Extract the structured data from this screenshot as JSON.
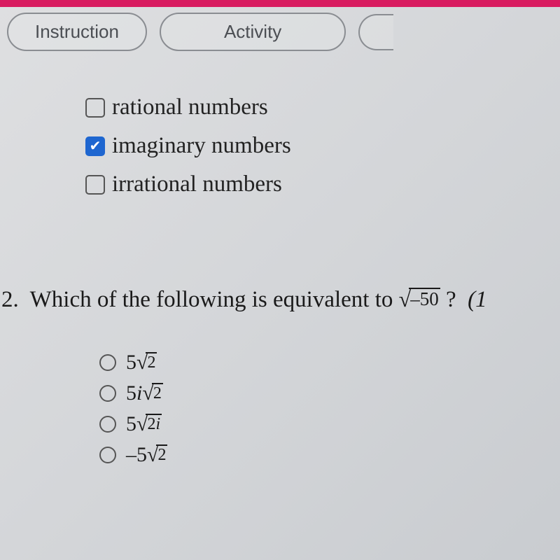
{
  "topbar_color": "#d81b60",
  "tabs": {
    "instruction": "Instruction",
    "activity": "Activity"
  },
  "checkboxes": [
    {
      "label": "rational numbers",
      "checked": false
    },
    {
      "label": "imaginary numbers",
      "checked": true
    },
    {
      "label": "irrational numbers",
      "checked": false
    }
  ],
  "question": {
    "number": "2.",
    "prefix": "Which of the following is equivalent to ",
    "radicand": "–50",
    "after": "?",
    "points": "(1 "
  },
  "options": [
    {
      "lead": "5",
      "radicand": "2",
      "trail": ""
    },
    {
      "lead": "5i",
      "radicand": "2",
      "trail": ""
    },
    {
      "lead": "5",
      "radicand": "2i",
      "trail": ""
    },
    {
      "lead": "–5",
      "radicand": "2",
      "trail": ""
    }
  ]
}
